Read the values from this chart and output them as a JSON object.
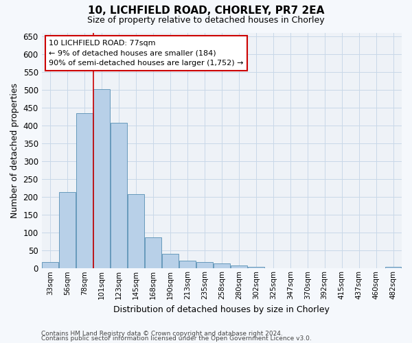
{
  "title1": "10, LICHFIELD ROAD, CHORLEY, PR7 2EA",
  "title2": "Size of property relative to detached houses in Chorley",
  "xlabel": "Distribution of detached houses by size in Chorley",
  "ylabel": "Number of detached properties",
  "categories": [
    "33sqm",
    "56sqm",
    "78sqm",
    "101sqm",
    "123sqm",
    "145sqm",
    "168sqm",
    "190sqm",
    "213sqm",
    "235sqm",
    "258sqm",
    "280sqm",
    "302sqm",
    "325sqm",
    "347sqm",
    "370sqm",
    "392sqm",
    "415sqm",
    "437sqm",
    "460sqm",
    "482sqm"
  ],
  "values": [
    17,
    213,
    435,
    502,
    408,
    207,
    86,
    40,
    22,
    18,
    13,
    8,
    5,
    0,
    0,
    0,
    0,
    0,
    0,
    0,
    5
  ],
  "bar_color": "#b8d0e8",
  "bar_edge_color": "#6699bb",
  "bar_edge_width": 0.7,
  "grid_color": "#c8d8e8",
  "annotation_text": "10 LICHFIELD ROAD: 77sqm\n← 9% of detached houses are smaller (184)\n90% of semi-detached houses are larger (1,752) →",
  "vline_x": 2.5,
  "vline_color": "#cc0000",
  "annotation_box_edge": "#cc0000",
  "ylim": [
    0,
    660
  ],
  "yticks": [
    0,
    50,
    100,
    150,
    200,
    250,
    300,
    350,
    400,
    450,
    500,
    550,
    600,
    650
  ],
  "footer1": "Contains HM Land Registry data © Crown copyright and database right 2024.",
  "footer2": "Contains public sector information licensed under the Open Government Licence v3.0.",
  "bg_color": "#eef2f7",
  "fig_color": "#f5f8fc"
}
